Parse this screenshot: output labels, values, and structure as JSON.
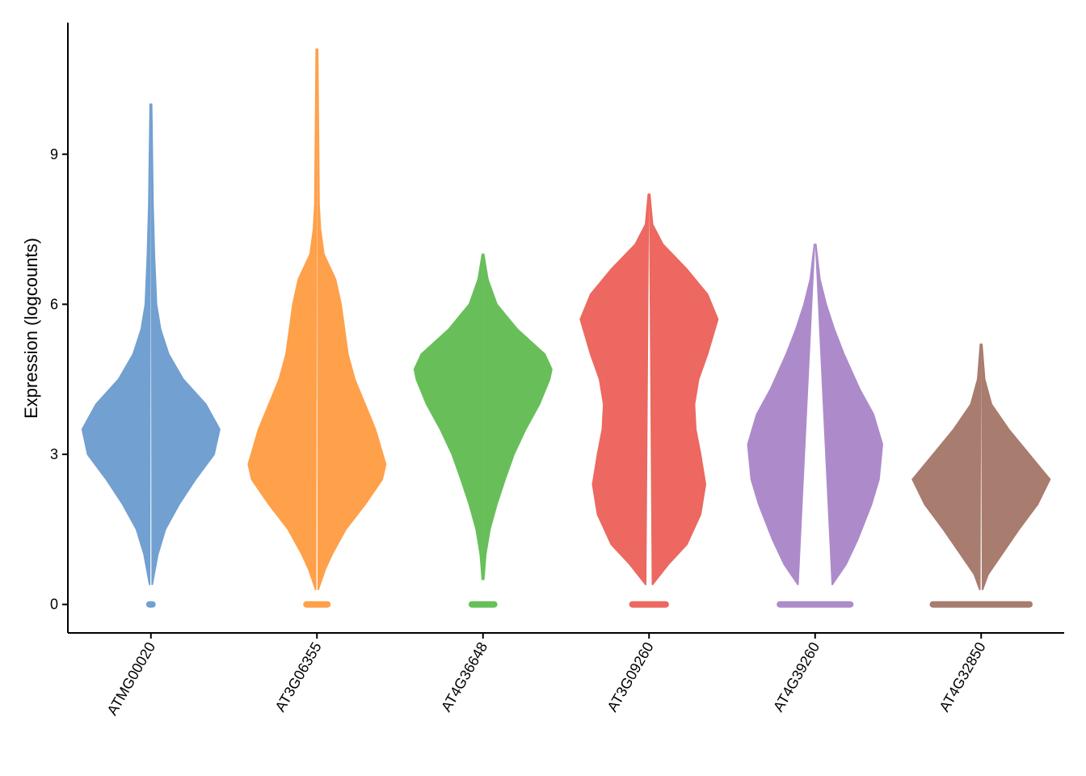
{
  "chart_data": {
    "type": "violin",
    "ylabel": "Expression (logcounts)",
    "ylim": [
      -0.57,
      11.63
    ],
    "yticks": [
      0,
      3,
      6,
      9
    ],
    "categories": [
      "ATMG00020",
      "AT3G06355",
      "AT4G36648",
      "AT3G09260",
      "AT4G39260",
      "AT4G32850"
    ],
    "violins": [
      {
        "color": "#72a0d0",
        "zero_width": 0.07,
        "y": [
          0.4,
          1,
          1.5,
          2,
          2.5,
          3,
          3.5,
          4,
          4.5,
          5,
          5.5,
          6,
          7,
          8,
          10
        ],
        "density": [
          0.02,
          0.1,
          0.21,
          0.41,
          0.65,
          0.92,
          1.0,
          0.8,
          0.47,
          0.26,
          0.14,
          0.08,
          0.05,
          0.03,
          0.01
        ]
      },
      {
        "color": "#ffa04a",
        "zero_width": 0.2,
        "y": [
          0.3,
          0.7,
          1,
          1.5,
          2,
          2.5,
          2.8,
          3.5,
          4,
          4.5,
          5,
          5.5,
          6,
          6.5,
          7,
          7.5,
          8,
          11.1
        ],
        "density": [
          0.02,
          0.12,
          0.22,
          0.42,
          0.7,
          0.95,
          1.0,
          0.85,
          0.7,
          0.55,
          0.45,
          0.4,
          0.35,
          0.27,
          0.1,
          0.05,
          0.03,
          0.01
        ]
      },
      {
        "color": "#68bf5a",
        "zero_width": 0.21,
        "y": [
          0.5,
          1,
          1.5,
          2,
          2.5,
          3,
          3.5,
          4,
          4.5,
          4.7,
          5,
          5.5,
          6,
          6.5,
          7
        ],
        "density": [
          0.01,
          0.04,
          0.1,
          0.2,
          0.32,
          0.45,
          0.62,
          0.82,
          0.97,
          1.0,
          0.9,
          0.5,
          0.2,
          0.07,
          0.01
        ]
      },
      {
        "color": "#ec6860",
        "zero_width": 0.29,
        "y": [
          0.4,
          0.8,
          1.2,
          1.8,
          2.4,
          3,
          3.5,
          4,
          4.5,
          5,
          5.7,
          6.2,
          6.7,
          7.2,
          7.6,
          8.2
        ],
        "density": [
          0.05,
          0.28,
          0.55,
          0.75,
          0.82,
          0.75,
          0.68,
          0.66,
          0.72,
          0.85,
          1.0,
          0.85,
          0.55,
          0.2,
          0.05,
          0.01
        ]
      },
      {
        "color": "#ad8bcb",
        "zero_width": 0.56,
        "y": [
          0.4,
          0.8,
          1.3,
          2,
          2.5,
          3.2,
          3.8,
          4.3,
          5,
          5.5,
          6,
          6.5,
          7.2
        ],
        "density": [
          0.25,
          0.45,
          0.62,
          0.82,
          0.93,
          0.98,
          0.85,
          0.65,
          0.42,
          0.28,
          0.16,
          0.07,
          0.01
        ]
      },
      {
        "color": "#a87c6e",
        "zero_width": 0.75,
        "y": [
          0.3,
          0.6,
          1,
          1.5,
          2,
          2.5,
          3,
          3.5,
          4,
          4.5,
          5.2
        ],
        "density": [
          0.02,
          0.1,
          0.3,
          0.55,
          0.82,
          1.0,
          0.7,
          0.4,
          0.15,
          0.05,
          0.01
        ]
      }
    ]
  }
}
